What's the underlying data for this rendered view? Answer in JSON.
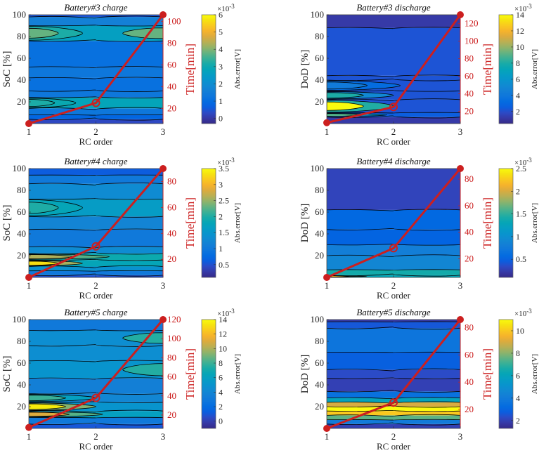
{
  "chart_data": [
    {
      "type": "heatmap",
      "title": "Battery#3 charge",
      "xlabel": "RC order",
      "ylabel": "SoC [%]",
      "ylabel_right": "Time[min]",
      "colorbar_label": "Abs.error[V]",
      "colorbar_multiplier": "×10",
      "colorbar_exponent": "-3",
      "x_ticks": [
        "1",
        "2",
        "3"
      ],
      "y_ticks": [
        "20",
        "40",
        "60",
        "80",
        "100"
      ],
      "y_right_ticks": [
        "20",
        "40",
        "60",
        "80",
        "100"
      ],
      "y_right_lim": [
        6,
        106
      ],
      "colorbar_ticks": [
        "0",
        "1",
        "2",
        "3",
        "4",
        "5",
        "6"
      ],
      "colorbar_lim": [
        -0.3,
        6
      ],
      "bands": [
        {
          "y0": 0,
          "y1": 4,
          "v": 0.3
        },
        {
          "y0": 4,
          "y1": 8,
          "v": 0.8
        },
        {
          "y0": 8,
          "y1": 14,
          "v": 1.3
        },
        {
          "y0": 14,
          "y1": 24,
          "v": 2.8,
          "peak_left": 3.2,
          "fade": 0.35
        },
        {
          "y0": 24,
          "y1": 30,
          "v": 1.3
        },
        {
          "y0": 30,
          "y1": 42,
          "v": 1.1
        },
        {
          "y0": 42,
          "y1": 52,
          "v": 1.3
        },
        {
          "y0": 52,
          "y1": 76,
          "v": 1.1
        },
        {
          "y0": 76,
          "y1": 90,
          "v": 2.6,
          "peak_left": 3.8,
          "peak_right": 3.8
        },
        {
          "y0": 90,
          "y1": 98,
          "v": 1.6
        },
        {
          "y0": 98,
          "y1": 100,
          "v": 0.5
        }
      ],
      "time_line": {
        "x": [
          1,
          2,
          3
        ],
        "time": [
          6,
          25,
          106
        ]
      }
    },
    {
      "type": "heatmap",
      "title": "Battery#3 discharge",
      "xlabel": "RC order",
      "ylabel": "DoD [%]",
      "ylabel_right": "Time[min]",
      "colorbar_label": "Abs.error[V]",
      "colorbar_multiplier": "×10",
      "colorbar_exponent": "-3",
      "x_ticks": [
        "1",
        "2",
        "3"
      ],
      "y_ticks": [
        "20",
        "40",
        "60",
        "80",
        "100"
      ],
      "y_right_ticks": [
        "20",
        "40",
        "60",
        "80",
        "100",
        "120"
      ],
      "y_right_lim": [
        6,
        130
      ],
      "colorbar_ticks": [
        "2",
        "4",
        "6",
        "8",
        "10",
        "12",
        "14"
      ],
      "colorbar_lim": [
        0.5,
        14
      ],
      "bands": [
        {
          "y0": 0,
          "y1": 6,
          "v": 1.2
        },
        {
          "y0": 6,
          "y1": 10,
          "v": 2.5,
          "peak_left": 9,
          "fade": 0.45
        },
        {
          "y0": 10,
          "y1": 22,
          "v": 2.2,
          "peak_left": 14,
          "fade": 0.5
        },
        {
          "y0": 22,
          "y1": 30,
          "v": 2.2,
          "peak_left": 8,
          "fade": 0.5
        },
        {
          "y0": 30,
          "y1": 40,
          "v": 2.2,
          "peak_left": 4.2,
          "fade": 0.55
        },
        {
          "y0": 40,
          "y1": 44,
          "v": 2.2
        },
        {
          "y0": 44,
          "y1": 88,
          "v": 2.2
        },
        {
          "y0": 88,
          "y1": 100,
          "v": 1.2
        }
      ],
      "time_line": {
        "x": [
          1,
          2,
          3
        ],
        "time": [
          7,
          25,
          130
        ]
      }
    },
    {
      "type": "heatmap",
      "title": "Battery#4 charge",
      "xlabel": "RC order",
      "ylabel": "SoC [%]",
      "ylabel_right": "Time[min]",
      "colorbar_label": "Abs.error[V]",
      "colorbar_multiplier": "×10",
      "colorbar_exponent": "-3",
      "x_ticks": [
        "1",
        "2",
        "3"
      ],
      "y_ticks": [
        "20",
        "40",
        "60",
        "80",
        "100"
      ],
      "y_right_ticks": [
        "20",
        "40",
        "60",
        "80"
      ],
      "y_right_lim": [
        6,
        90
      ],
      "colorbar_ticks": [
        "0.5",
        "1",
        "1.5",
        "2",
        "2.5",
        "3",
        "3.5"
      ],
      "colorbar_lim": [
        0.1,
        3.5
      ],
      "bands": [
        {
          "y0": 0,
          "y1": 2,
          "v": 0.5
        },
        {
          "y0": 2,
          "y1": 6,
          "v": 1.0
        },
        {
          "y0": 6,
          "y1": 10,
          "v": 1.4
        },
        {
          "y0": 10,
          "y1": 16,
          "v": 1.8,
          "peak_left": 3.3,
          "fade": 0.4
        },
        {
          "y0": 16,
          "y1": 22,
          "v": 1.9,
          "peak_left": 2.6,
          "fade": 0.6
        },
        {
          "y0": 22,
          "y1": 28,
          "v": 1.3
        },
        {
          "y0": 28,
          "y1": 44,
          "v": 1.0
        },
        {
          "y0": 44,
          "y1": 56,
          "v": 1.2
        },
        {
          "y0": 56,
          "y1": 72,
          "v": 1.6,
          "peak_left": 2.0,
          "fade": 0.4
        },
        {
          "y0": 72,
          "y1": 86,
          "v": 1.3
        },
        {
          "y0": 86,
          "y1": 94,
          "v": 1.0
        },
        {
          "y0": 94,
          "y1": 100,
          "v": 0.6
        }
      ],
      "time_line": {
        "x": [
          1,
          2,
          3
        ],
        "time": [
          6,
          30,
          90
        ]
      }
    },
    {
      "type": "heatmap",
      "title": "Battery#4 discharge",
      "xlabel": "RC order",
      "ylabel": "DoD [%]",
      "ylabel_right": "Time[min]",
      "colorbar_label": "Abs.error[V]",
      "colorbar_multiplier": "×10",
      "colorbar_exponent": "-3",
      "x_ticks": [
        "1",
        "2",
        "3"
      ],
      "y_ticks": [
        "20",
        "40",
        "60",
        "80",
        "100"
      ],
      "y_right_ticks": [
        "20",
        "40",
        "60",
        "80"
      ],
      "y_right_lim": [
        6,
        88
      ],
      "colorbar_ticks": [
        "0.5",
        "1",
        "1.5",
        "2",
        "2.5"
      ],
      "colorbar_lim": [
        0.1,
        2.5
      ],
      "bands": [
        {
          "y0": 0,
          "y1": 2,
          "v": 1.3,
          "peak_left": 2.2,
          "fade": 0.3
        },
        {
          "y0": 2,
          "y1": 7,
          "v": 1.4
        },
        {
          "y0": 7,
          "y1": 20,
          "v": 0.9
        },
        {
          "y0": 20,
          "y1": 30,
          "v": 0.8
        },
        {
          "y0": 30,
          "y1": 44,
          "v": 0.5
        },
        {
          "y0": 44,
          "y1": 62,
          "v": 0.55
        },
        {
          "y0": 62,
          "y1": 100,
          "v": 0.3
        }
      ],
      "time_line": {
        "x": [
          1,
          2,
          3
        ],
        "time": [
          6,
          28,
          88
        ]
      }
    },
    {
      "type": "heatmap",
      "title": "Battery#5 charge",
      "xlabel": "RC order",
      "ylabel": "SoC [%]",
      "ylabel_right": "Time[min]",
      "colorbar_label": "Abs.error[V]",
      "colorbar_multiplier": "×10",
      "colorbar_exponent": "-3",
      "x_ticks": [
        "1",
        "2",
        "3"
      ],
      "y_ticks": [
        "20",
        "40",
        "60",
        "80",
        "100"
      ],
      "y_right_ticks": [
        "20",
        "40",
        "60",
        "80",
        "100",
        "120"
      ],
      "y_right_lim": [
        6,
        120
      ],
      "colorbar_ticks": [
        "0",
        "2",
        "4",
        "6",
        "8",
        "10",
        "12",
        "14"
      ],
      "colorbar_lim": [
        -1,
        14
      ],
      "bands": [
        {
          "y0": 0,
          "y1": 4,
          "v": 1.0
        },
        {
          "y0": 4,
          "y1": 10,
          "v": 3.0
        },
        {
          "y0": 10,
          "y1": 16,
          "v": 6.0,
          "peak_left": 11,
          "fade": 0.55
        },
        {
          "y0": 16,
          "y1": 24,
          "v": 5.0,
          "peak_left": 13.5,
          "fade": 0.5
        },
        {
          "y0": 24,
          "y1": 32,
          "v": 4.0,
          "peak_left": 8,
          "fade": 0.5
        },
        {
          "y0": 32,
          "y1": 46,
          "v": 3.5
        },
        {
          "y0": 46,
          "y1": 62,
          "v": 5.0,
          "peak_right": 7.5
        },
        {
          "y0": 62,
          "y1": 76,
          "v": 4.5
        },
        {
          "y0": 76,
          "y1": 90,
          "v": 4.5,
          "peak_right": 7.5
        },
        {
          "y0": 90,
          "y1": 100,
          "v": 3.0
        }
      ],
      "time_line": {
        "x": [
          1,
          2,
          3
        ],
        "time": [
          7,
          38,
          120
        ]
      }
    },
    {
      "type": "heatmap",
      "title": "Battery#5 discharge",
      "xlabel": "RC order",
      "ylabel": "DoD [%]",
      "ylabel_right": "Time[min]",
      "colorbar_label": "Abs.error[V]",
      "colorbar_multiplier": "×10",
      "colorbar_exponent": "-3",
      "x_ticks": [
        "1",
        "2",
        "3"
      ],
      "y_ticks": [
        "20",
        "40",
        "60",
        "80",
        "100"
      ],
      "y_right_ticks": [
        "20",
        "40",
        "60",
        "80"
      ],
      "y_right_lim": [
        6,
        86
      ],
      "colorbar_ticks": [
        "2",
        "4",
        "6",
        "8",
        "10"
      ],
      "colorbar_lim": [
        1.3,
        11
      ],
      "bands": [
        {
          "y0": 0,
          "y1": 4,
          "v": 2.0
        },
        {
          "y0": 4,
          "y1": 8,
          "v": 4.0
        },
        {
          "y0": 8,
          "y1": 12,
          "v": 7.5
        },
        {
          "y0": 12,
          "y1": 16,
          "v": 10.0
        },
        {
          "y0": 16,
          "y1": 20,
          "v": 11.0
        },
        {
          "y0": 20,
          "y1": 24,
          "v": 9.0
        },
        {
          "y0": 24,
          "y1": 28,
          "v": 6.0
        },
        {
          "y0": 28,
          "y1": 34,
          "v": 3.5
        },
        {
          "y0": 34,
          "y1": 46,
          "v": 2.0
        },
        {
          "y0": 46,
          "y1": 54,
          "v": 2.3
        },
        {
          "y0": 54,
          "y1": 70,
          "v": 2.8
        },
        {
          "y0": 70,
          "y1": 92,
          "v": 3.7
        },
        {
          "y0": 92,
          "y1": 98,
          "v": 2.6
        },
        {
          "y0": 98,
          "y1": 100,
          "v": 1.8
        }
      ],
      "time_line": {
        "x": [
          1,
          2,
          3
        ],
        "time": [
          6,
          25,
          86
        ]
      }
    }
  ],
  "colors": {
    "time_line": "#cc1f1f",
    "contour": "#000000",
    "axis": "#222222"
  }
}
